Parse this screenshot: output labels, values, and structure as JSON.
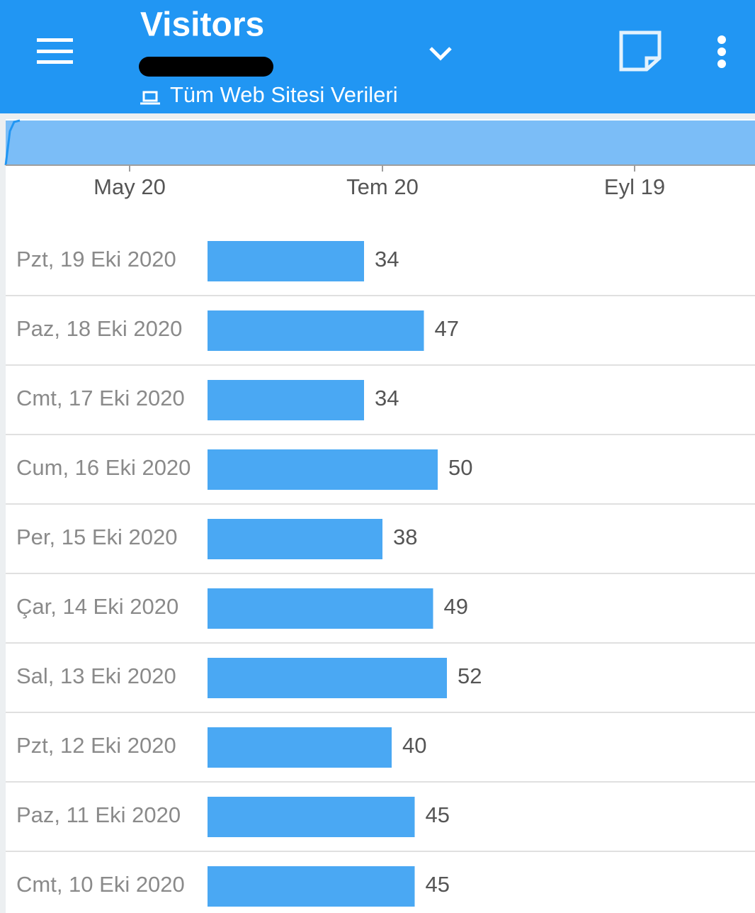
{
  "header": {
    "title": "Visitors",
    "subtitle": "Tüm Web Sitesi Verileri"
  },
  "timeline": {
    "labels": [
      "May 20",
      "Tem 20",
      "Eyl 19"
    ]
  },
  "list": {
    "rows": [
      {
        "label": "Pzt, 19 Eki 2020",
        "value": 34
      },
      {
        "label": "Paz, 18 Eki 2020",
        "value": 47
      },
      {
        "label": "Cmt, 17 Eki 2020",
        "value": 34
      },
      {
        "label": "Cum, 16 Eki 2020",
        "value": 50
      },
      {
        "label": "Per, 15 Eki 2020",
        "value": 38
      },
      {
        "label": "Çar, 14 Eki 2020",
        "value": 49
      },
      {
        "label": "Sal, 13 Eki 2020",
        "value": 52
      },
      {
        "label": "Pzt, 12 Eki 2020",
        "value": 40
      },
      {
        "label": "Paz, 11 Eki 2020",
        "value": 45
      },
      {
        "label": "Cmt, 10 Eki 2020",
        "value": 45
      }
    ]
  }
}
